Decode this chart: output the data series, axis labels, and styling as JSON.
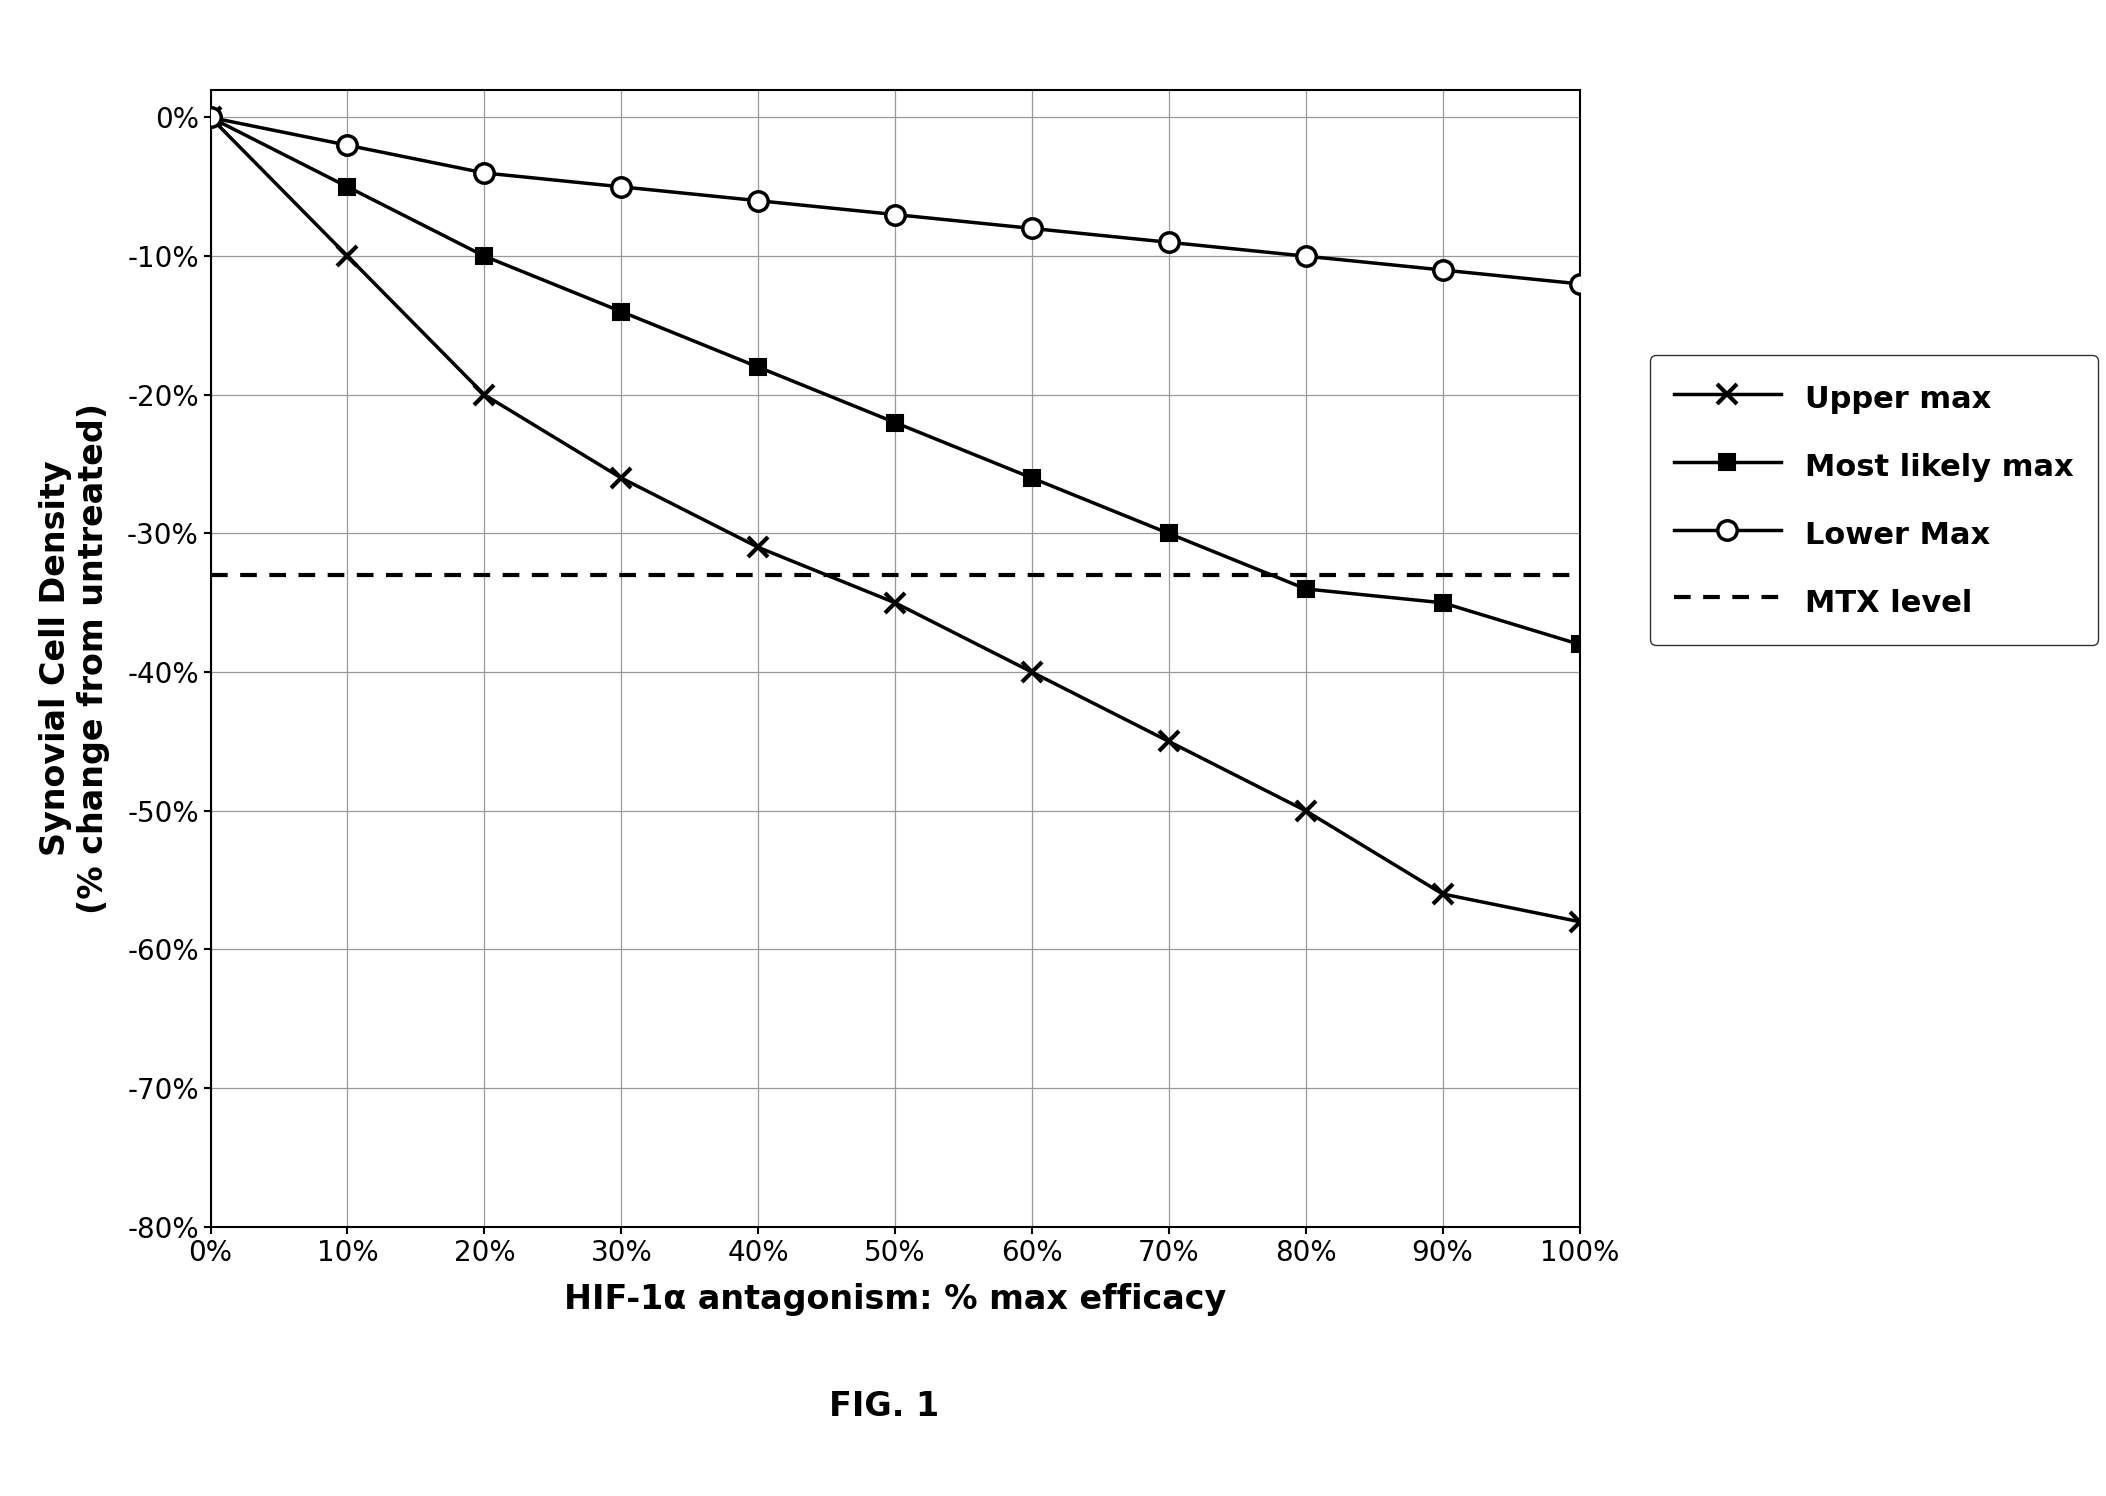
{
  "x": [
    0,
    10,
    20,
    30,
    40,
    50,
    60,
    70,
    80,
    90,
    100
  ],
  "upper_max": [
    0,
    -10,
    -20,
    -26,
    -31,
    -35,
    -40,
    -45,
    -50,
    -56,
    -58
  ],
  "most_likely_max": [
    0,
    -5,
    -10,
    -14,
    -18,
    -22,
    -26,
    -30,
    -34,
    -35,
    -38
  ],
  "lower_max": [
    0,
    -2,
    -4,
    -5,
    -6,
    -7,
    -8,
    -9,
    -10,
    -11,
    -12
  ],
  "mtx_level": -33,
  "xlabel": "HIF-1α antagonism: % max efficacy",
  "ylabel": "Synovial Cell Density\n(% change from untreated)",
  "legend_labels": [
    "Upper max",
    "Most likely max",
    "Lower Max",
    "MTX level"
  ],
  "ylim": [
    -80,
    2
  ],
  "xlim": [
    0,
    100
  ],
  "yticks": [
    0,
    -10,
    -20,
    -30,
    -40,
    -50,
    -60,
    -70,
    -80
  ],
  "xticks": [
    0,
    10,
    20,
    30,
    40,
    50,
    60,
    70,
    80,
    90,
    100
  ],
  "fig_caption": "FIG. 1",
  "line_color": "#000000",
  "background_color": "#ffffff",
  "grid_major_color": "#aaaaaa",
  "grid_minor_color": "#cccccc"
}
